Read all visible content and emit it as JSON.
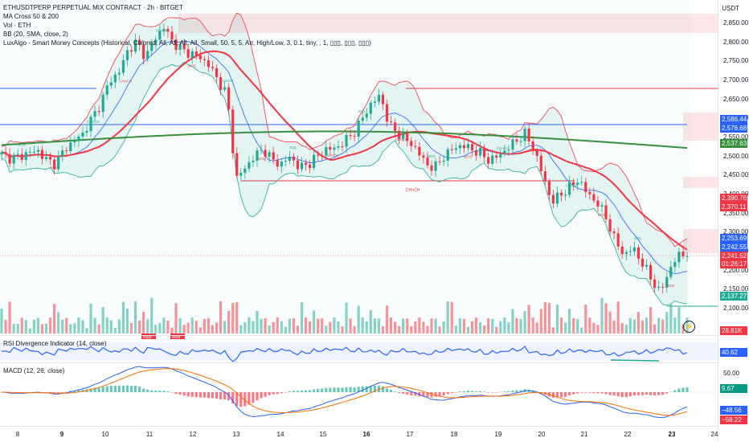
{
  "header": {
    "symbol_line": "ETHUSDTPERP PERPETUAL MIX CONTRACT · 2h · BITGET",
    "indicators": [
      "MA Cross 50 & 200",
      "Vol · ETH",
      "BB (20, SMA, close, 2)",
      "LuxAlgo - Smart Money Concepts (Historical, Colored, All, All, All, All, Small, 50, 5, 5, Atr, High/Low, 3, 0.1, tiny, , 1, ▯▯▯, ▯▯▯, ▯▯▯)"
    ],
    "currency": "USDT"
  },
  "price_axis": {
    "ticks": [
      "2,850.00",
      "2,800.00",
      "2,750.00",
      "2,700.00",
      "2,650.00",
      "2,600.00",
      "2,550.00",
      "2,500.00",
      "2,450.00",
      "2,400.00",
      "2,350.00",
      "2,300.00",
      "2,250.00",
      "2,200.00",
      "2,150.00",
      "2,100.00"
    ],
    "tags": [
      {
        "label": "2,586.44",
        "color": "#2962ff"
      },
      {
        "label": "2,576.68",
        "color": "#2962ff"
      },
      {
        "label": "2,537.63",
        "color": "#388e3c"
      },
      {
        "label": "2,390.76",
        "color": "#f23645"
      },
      {
        "label": "2,370.11",
        "color": "#f23645"
      },
      {
        "label": "2,253.69",
        "color": "#2962ff"
      },
      {
        "label": "2,242.55",
        "color": "#2962ff"
      },
      {
        "label": "2,241.52",
        "color": "#f23645"
      },
      {
        "label": "01:26:17",
        "color": "#f23645"
      },
      {
        "label": "2,137.27",
        "color": "#22ab94"
      }
    ],
    "volume_tag": {
      "label": "28.81K",
      "color": "#f23645"
    }
  },
  "smc_labels": [
    "BOS",
    "BOS",
    "CHoCH",
    "CHoCH",
    "CHoCH",
    "BOS",
    "CHoCH",
    "BOS",
    "EQL",
    "CHoCH",
    "EQL",
    "CHoCH",
    "BOS",
    "BOS",
    "CHoCH",
    "BOS",
    "CHoCH",
    "BOS",
    "EQL",
    "BOS"
  ],
  "smc_break_label": "CHoCH",
  "rsi": {
    "title": "RSI Divergence Indicator (14, close)",
    "value_tag": "40.62",
    "bear_labels": [
      "Bear",
      "Bear"
    ]
  },
  "macd": {
    "title": "MACD (12, 26, close)",
    "axis_tick": "50.00",
    "tags": [
      {
        "label": "9.67",
        "color": "#089981"
      },
      {
        "label": "−48.56",
        "color": "#2962ff"
      },
      {
        "label": "−58.22",
        "color": "#f23645"
      }
    ]
  },
  "time_axis": [
    {
      "label": "8",
      "bold": false
    },
    {
      "label": "9",
      "bold": true
    },
    {
      "label": "10",
      "bold": false
    },
    {
      "label": "11",
      "bold": false
    },
    {
      "label": "12",
      "bold": false
    },
    {
      "label": "13",
      "bold": false
    },
    {
      "label": "14",
      "bold": false
    },
    {
      "label": "15",
      "bold": false
    },
    {
      "label": "16",
      "bold": true
    },
    {
      "label": "17",
      "bold": false
    },
    {
      "label": "18",
      "bold": false
    },
    {
      "label": "19",
      "bold": false
    },
    {
      "label": "20",
      "bold": false
    },
    {
      "label": "21",
      "bold": false
    },
    {
      "label": "22",
      "bold": false
    },
    {
      "label": "23",
      "bold": true
    },
    {
      "label": "24",
      "bold": false
    }
  ],
  "colors": {
    "up": "#22ab94",
    "down": "#f23645",
    "ma50": "#f23645",
    "ma200": "#388e3c",
    "bb_basis": "#2962ff",
    "bb_fill": "#22ab9420",
    "zone": "#f2364522"
  },
  "chart_data": {
    "type": "candlestick",
    "interval": "2h",
    "approx_closes": [
      2505,
      2495,
      2500,
      2510,
      2515,
      2490,
      2480,
      2520,
      2540,
      2560,
      2600,
      2640,
      2700,
      2720,
      2780,
      2800,
      2760,
      2810,
      2840,
      2800,
      2780,
      2770,
      2760,
      2740,
      2700,
      2660,
      2440,
      2470,
      2500,
      2520,
      2490,
      2480,
      2500,
      2470,
      2480,
      2500,
      2520,
      2520,
      2540,
      2560,
      2600,
      2640,
      2660,
      2580,
      2560,
      2540,
      2520,
      2480,
      2470,
      2500,
      2520,
      2530,
      2520,
      2510,
      2490,
      2500,
      2520,
      2540,
      2560,
      2520,
      2450,
      2380,
      2400,
      2420,
      2440,
      2400,
      2380,
      2340,
      2280,
      2240,
      2260,
      2220,
      2180,
      2140,
      2200,
      2240,
      2245
    ],
    "last": 2241.52
  }
}
